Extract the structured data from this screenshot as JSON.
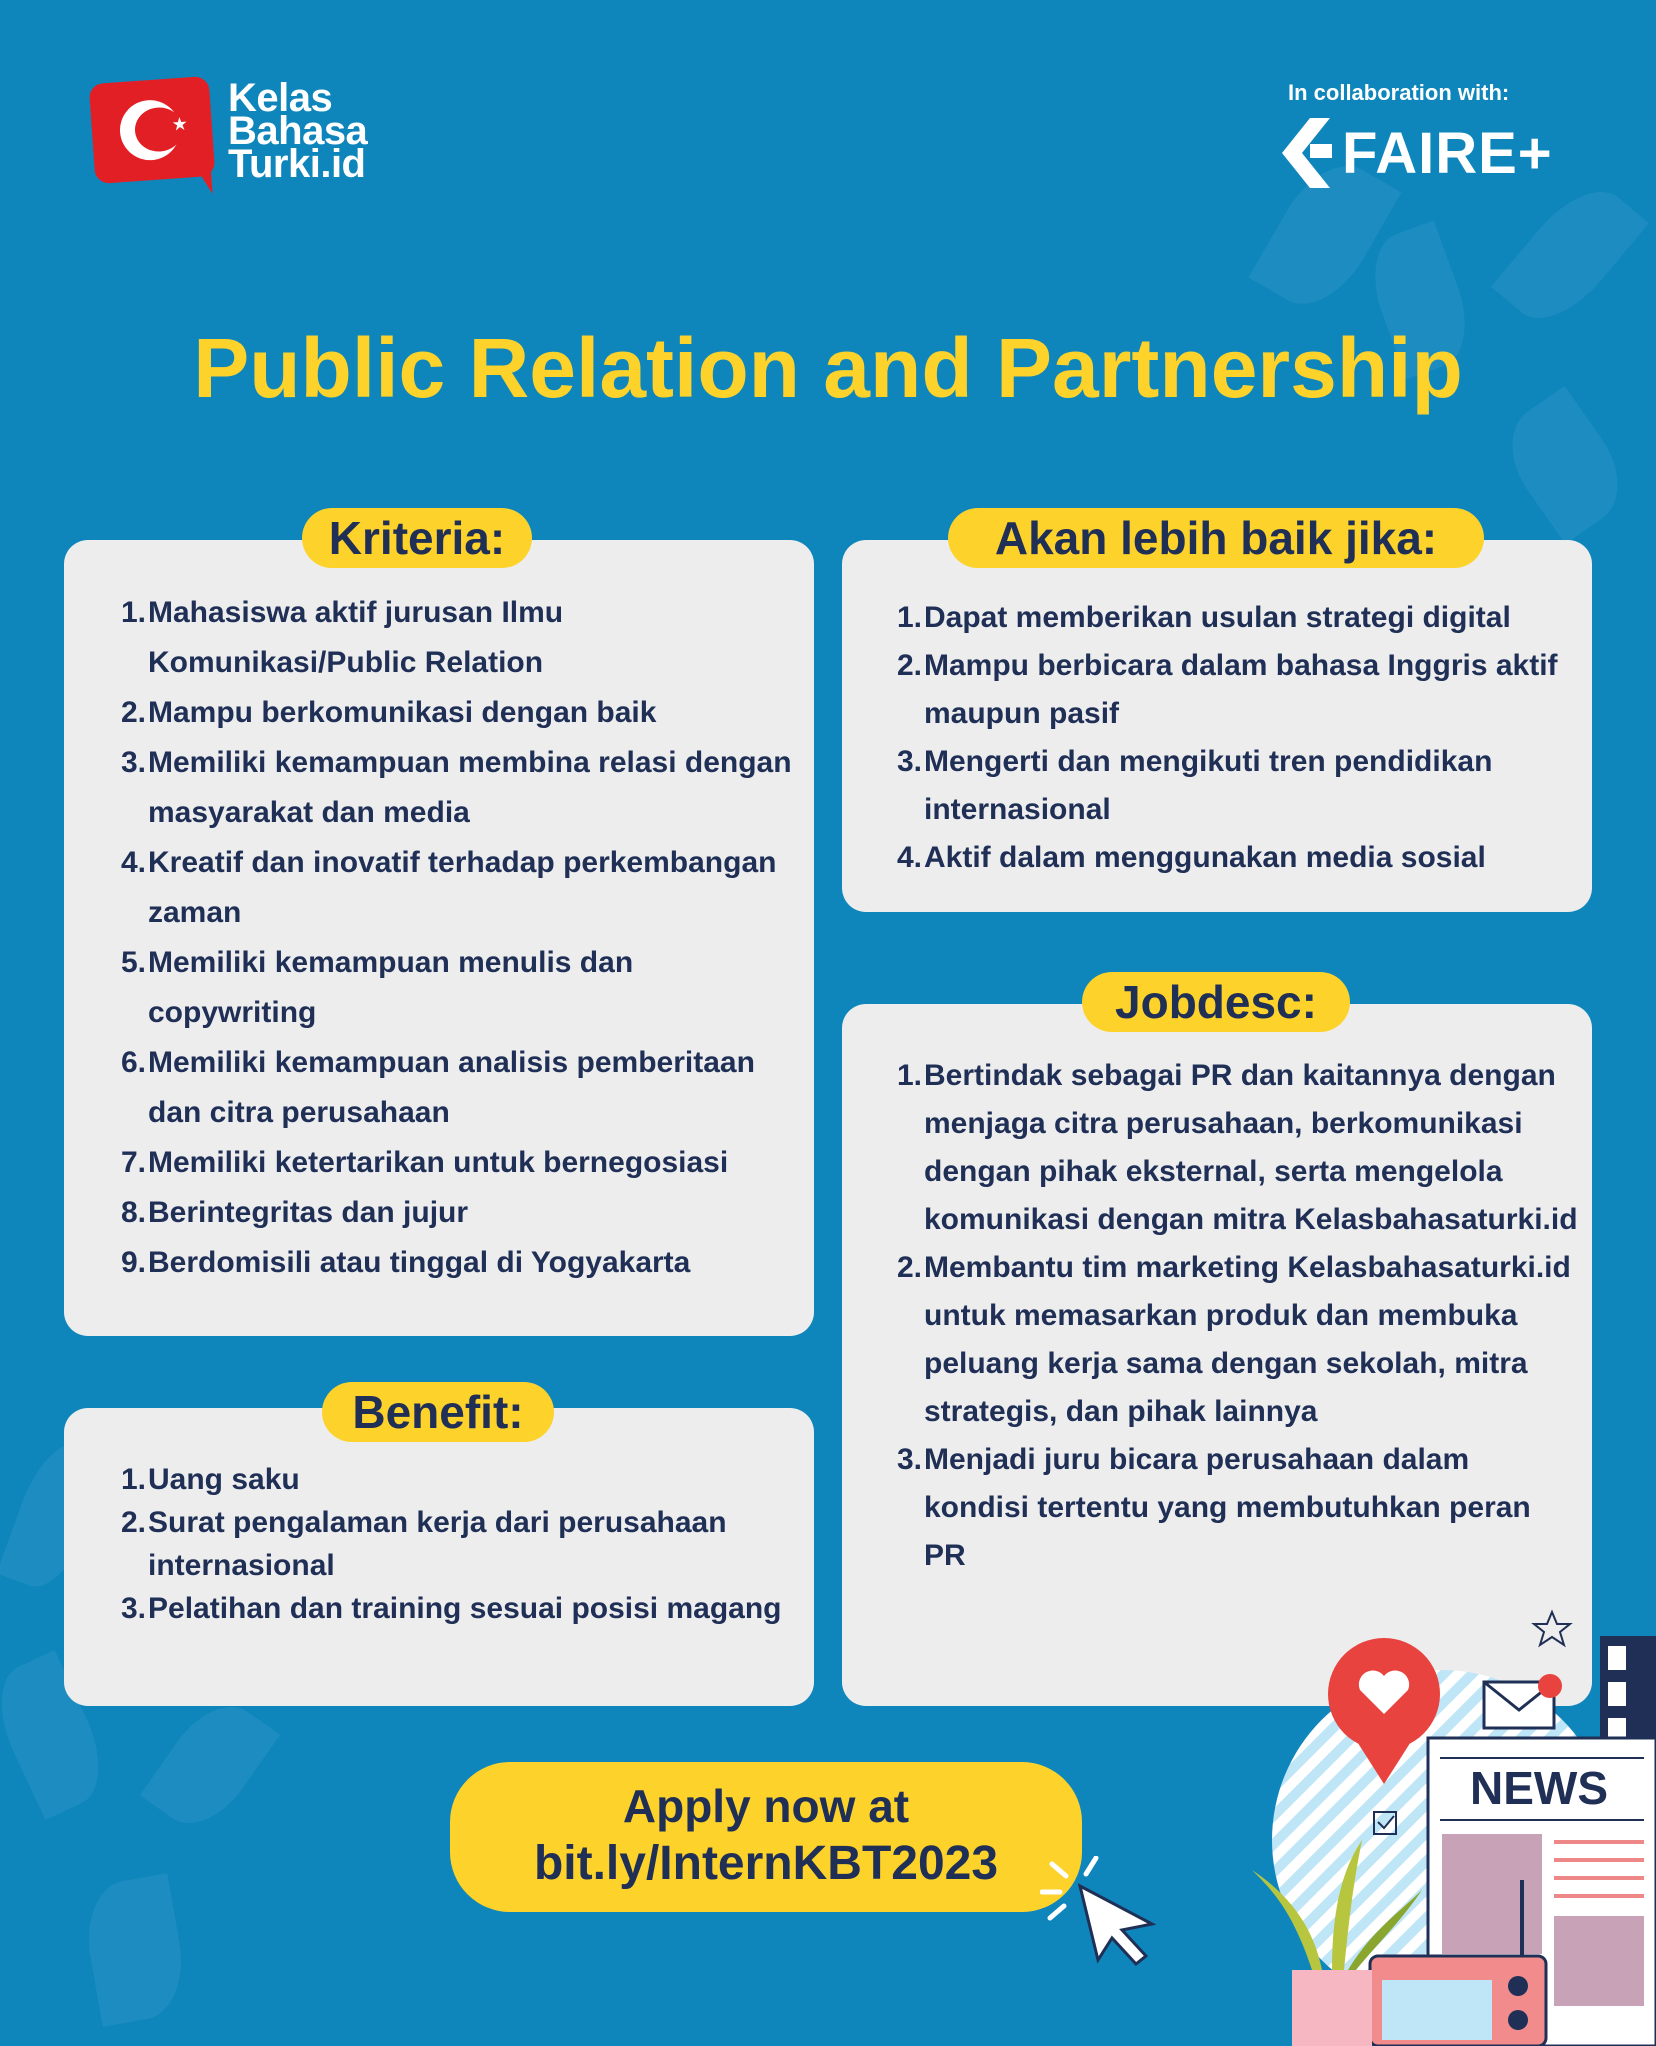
{
  "brand": {
    "logo_lines": [
      "Kelas",
      "Bahasa",
      "Turki.id"
    ],
    "collab_label": "In collaboration with:",
    "partner_name": "FAIRE+"
  },
  "title": "Public Relation and Partnership",
  "kriteria": {
    "heading": "Kriteria:",
    "items": [
      {
        "num": "1.",
        "text": "Mahasiswa aktif jurusan Ilmu Komunikasi/Public Relation"
      },
      {
        "num": "2.",
        "text": "Mampu berkomunikasi dengan baik"
      },
      {
        "num": "3.",
        "text": "Memiliki kemampuan membina relasi dengan masyarakat dan media"
      },
      {
        "num": "4.",
        "text": "Kreatif dan inovatif terhadap perkembangan zaman"
      },
      {
        "num": "5.",
        "text": "Memiliki kemampuan menulis dan copywriting"
      },
      {
        "num": "6.",
        "text": "Memiliki kemampuan analisis pemberitaan dan citra perusahaan"
      },
      {
        "num": "7.",
        "text": "Memiliki ketertarikan untuk bernegosiasi"
      },
      {
        "num": "8.",
        "text": "Berintegritas dan jujur"
      },
      {
        "num": "9.",
        "text": "Berdomisili atau tinggal di Yogyakarta"
      }
    ]
  },
  "akan": {
    "heading": "Akan lebih baik jika:",
    "items": [
      {
        "num": "1.",
        "text": "Dapat memberikan usulan strategi digital"
      },
      {
        "num": "2.",
        "text": "Mampu berbicara dalam bahasa Inggris aktif maupun pasif"
      },
      {
        "num": "3.",
        "text": "Mengerti dan mengikuti tren pendidikan internasional"
      },
      {
        "num": "4.",
        "text": "Aktif dalam menggunakan media sosial"
      }
    ]
  },
  "jobdesc": {
    "heading": "Jobdesc:",
    "items": [
      {
        "num": "1.",
        "text": "Bertindak sebagai PR dan kaitannya dengan menjaga citra perusahaan, berkomunikasi dengan pihak eksternal, serta mengelola komunikasi dengan mitra Kelasbahasaturki.id"
      },
      {
        "num": "2.",
        "text": "Membantu tim marketing Kelasbahasaturki.id untuk memasarkan produk dan membuka peluang kerja sama dengan sekolah, mitra strategis, dan pihak lainnya"
      },
      {
        "num": "3.",
        "text": "Menjadi juru bicara perusahaan dalam kondisi tertentu yang membutuhkan peran PR"
      }
    ]
  },
  "benefit": {
    "heading": "Benefit:",
    "items": [
      {
        "num": "1.",
        "text": "Uang saku"
      },
      {
        "num": "2.",
        "text": "Surat pengalaman kerja dari perusahaan internasional"
      },
      {
        "num": "3.",
        "text": "Pelatihan dan training sesuai posisi magang"
      }
    ]
  },
  "cta": {
    "line1": "Apply now at",
    "line2": "bit.ly/InternKBT2023"
  },
  "illustration": {
    "news_label": "NEWS"
  },
  "colors": {
    "background": "#0f86bb",
    "accent_yellow": "#fcd22b",
    "card": "#ededee",
    "text_dark": "#1f2f55",
    "brand_red": "#e31f26"
  }
}
